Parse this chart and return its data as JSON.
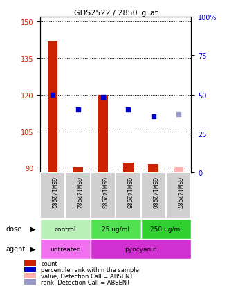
{
  "title": "GDS2522 / 2850_g_at",
  "samples": [
    "GSM142982",
    "GSM142984",
    "GSM142983",
    "GSM142985",
    "GSM142986",
    "GSM142987"
  ],
  "red_bar_values": [
    142,
    90.5,
    120,
    92,
    91.5,
    null
  ],
  "pink_bar_values": [
    null,
    null,
    null,
    null,
    null,
    90.5
  ],
  "blue_square_values": [
    120,
    114,
    119,
    114,
    111,
    null
  ],
  "light_blue_square_values": [
    null,
    null,
    null,
    null,
    null,
    112
  ],
  "ylim_left": [
    88,
    152
  ],
  "ylim_right": [
    0,
    100
  ],
  "yticks_left": [
    90,
    105,
    120,
    135,
    150
  ],
  "yticks_right": [
    0,
    25,
    50,
    75,
    100
  ],
  "right_tick_labels": [
    "0",
    "25",
    "50",
    "75",
    "100%"
  ],
  "dose_groups": [
    {
      "label": "control",
      "start": 0,
      "end": 2,
      "color": "#b8f0b8"
    },
    {
      "label": "25 ug/ml",
      "start": 2,
      "end": 4,
      "color": "#50e050"
    },
    {
      "label": "250 ug/ml",
      "start": 4,
      "end": 6,
      "color": "#30d030"
    }
  ],
  "agent_groups": [
    {
      "label": "untreated",
      "start": 0,
      "end": 2,
      "color": "#f070f0"
    },
    {
      "label": "pyocyanin",
      "start": 2,
      "end": 6,
      "color": "#d030d0"
    }
  ],
  "red_color": "#cc2200",
  "pink_color": "#ffb0b0",
  "blue_color": "#0000cc",
  "light_blue_color": "#9999cc",
  "bar_width": 0.4,
  "square_size": 25,
  "legend_items": [
    {
      "label": "count",
      "color": "#cc2200"
    },
    {
      "label": "percentile rank within the sample",
      "color": "#0000cc"
    },
    {
      "label": "value, Detection Call = ABSENT",
      "color": "#ffb0b0"
    },
    {
      "label": "rank, Detection Call = ABSENT",
      "color": "#9999cc"
    }
  ]
}
